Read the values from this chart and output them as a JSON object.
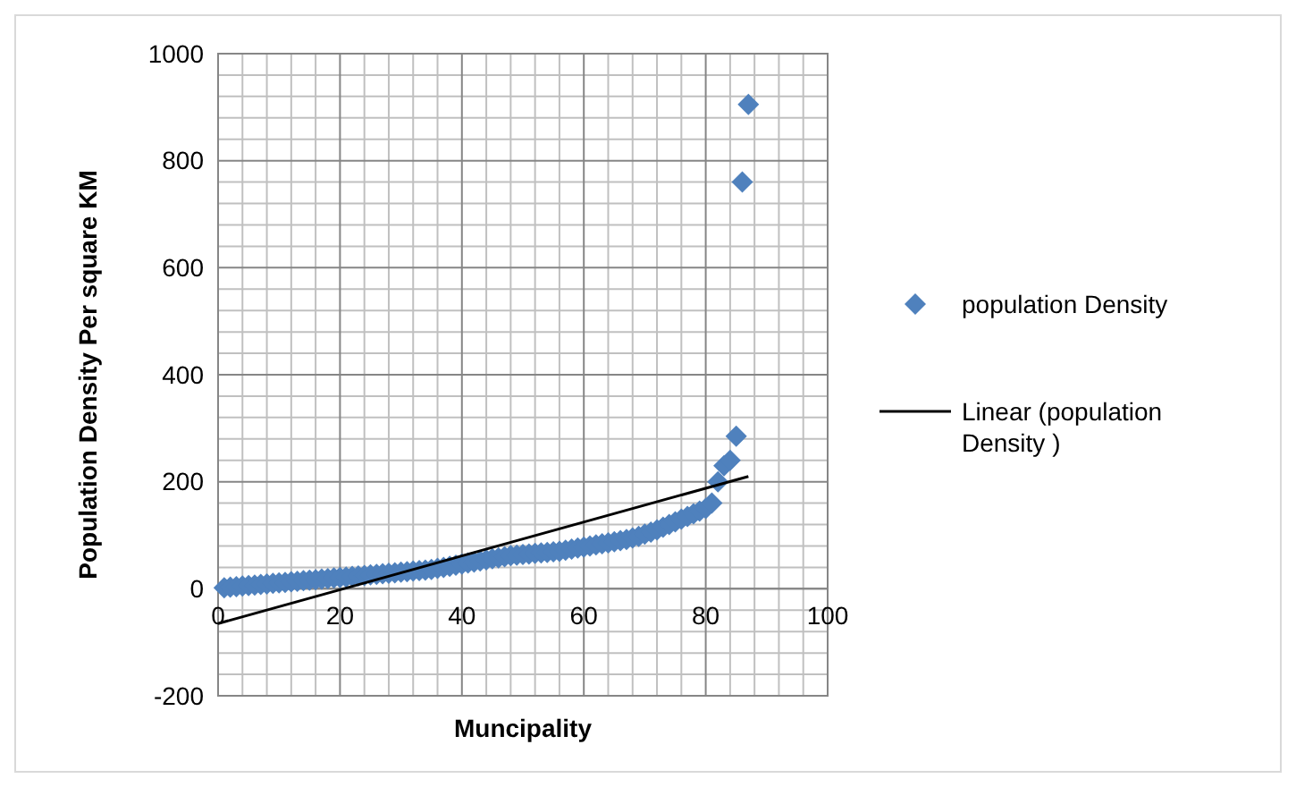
{
  "chart_data": {
    "type": "scatter",
    "xlabel": "Muncipality",
    "ylabel": "Population Density Per square KM",
    "xlim": [
      0,
      100
    ],
    "xticks": [
      0,
      20,
      40,
      60,
      80,
      100
    ],
    "ylim": [
      -200,
      1000
    ],
    "yticks": [
      -200,
      0,
      200,
      400,
      600,
      800,
      1000
    ],
    "grid": true,
    "legend": "right",
    "marker": "diamond",
    "series": [
      {
        "name": "population Density",
        "color": "#4f81bd",
        "x": [
          1,
          2,
          3,
          4,
          5,
          6,
          7,
          8,
          9,
          10,
          11,
          12,
          13,
          14,
          15,
          16,
          17,
          18,
          19,
          20,
          21,
          22,
          23,
          24,
          25,
          26,
          27,
          28,
          29,
          30,
          31,
          32,
          33,
          34,
          35,
          36,
          37,
          38,
          39,
          40,
          41,
          42,
          43,
          44,
          45,
          46,
          47,
          48,
          49,
          50,
          51,
          52,
          53,
          54,
          55,
          56,
          57,
          58,
          59,
          60,
          61,
          62,
          63,
          64,
          65,
          66,
          67,
          68,
          69,
          70,
          71,
          72,
          73,
          74,
          75,
          76,
          77,
          78,
          79,
          80,
          81,
          82,
          83,
          84,
          85,
          86,
          87
        ],
        "values": [
          2,
          3,
          4,
          5,
          6,
          7,
          8,
          9,
          10,
          11,
          12,
          13,
          14,
          15,
          16,
          17,
          18,
          19,
          20,
          21,
          22,
          23,
          24,
          25,
          26,
          27,
          28,
          29,
          30,
          31,
          32,
          33,
          34,
          35,
          36,
          38,
          40,
          42,
          44,
          46,
          48,
          50,
          52,
          54,
          56,
          58,
          60,
          62,
          63,
          64,
          65,
          66,
          67,
          68,
          69,
          70,
          72,
          74,
          76,
          78,
          80,
          82,
          84,
          86,
          88,
          90,
          92,
          95,
          98,
          102,
          106,
          110,
          115,
          120,
          125,
          130,
          135,
          140,
          145,
          150,
          160,
          200,
          230,
          240,
          285,
          760,
          905
        ]
      },
      {
        "name": "Linear (population Density )",
        "type": "line",
        "color": "#000000",
        "marker": "none",
        "x": [
          0,
          87
        ],
        "values": [
          -65,
          210
        ]
      }
    ]
  }
}
